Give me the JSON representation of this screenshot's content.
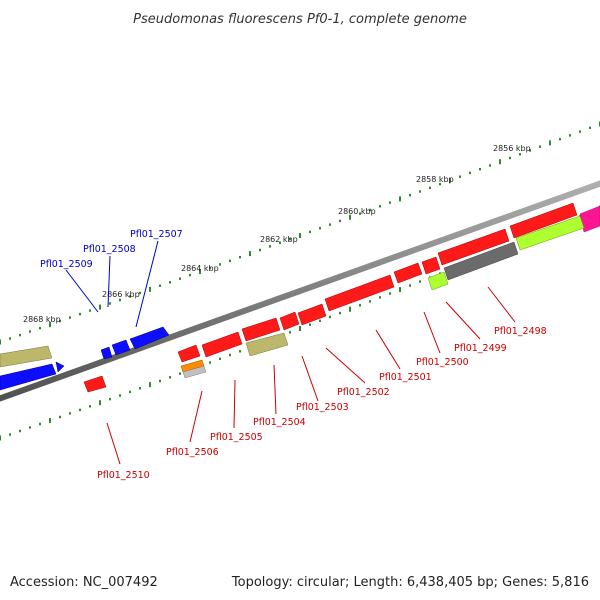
{
  "title": "Pseudomonas fluorescens Pf0-1, complete genome",
  "footer": {
    "accession": "Accession: NC_007492",
    "summary": "Topology: circular; Length: 6,438,405 bp; Genes: 5,816"
  },
  "colors": {
    "forward_label": "#0000cc",
    "reverse_label": "#cc0000",
    "gene_red": "#ff1a1a",
    "gene_blue": "#0d0dff",
    "gene_khaki": "#bdb76b",
    "gene_lime": "#adff2f",
    "gene_gray": "#6b6b6b",
    "gene_orange": "#ff8c00",
    "gene_magenta": "#ff1493",
    "backbone": "#808080",
    "tick": "#2e8b2e"
  },
  "scale": {
    "outer_labels": [
      "2856 kbp",
      "2858 kbp",
      "2860 kbp",
      "2862 kbp",
      "2864 kbp",
      "2866 kbp",
      "2868 kbp"
    ]
  },
  "forward_gene_labels": [
    "Pfl01_2507",
    "Pfl01_2508",
    "Pfl01_2509"
  ],
  "reverse_gene_labels": [
    "Pfl01_2498",
    "Pfl01_2499",
    "Pfl01_2500",
    "Pfl01_2501",
    "Pfl01_2502",
    "Pfl01_2503",
    "Pfl01_2504",
    "Pfl01_2505",
    "Pfl01_2506",
    "Pfl01_2510"
  ]
}
